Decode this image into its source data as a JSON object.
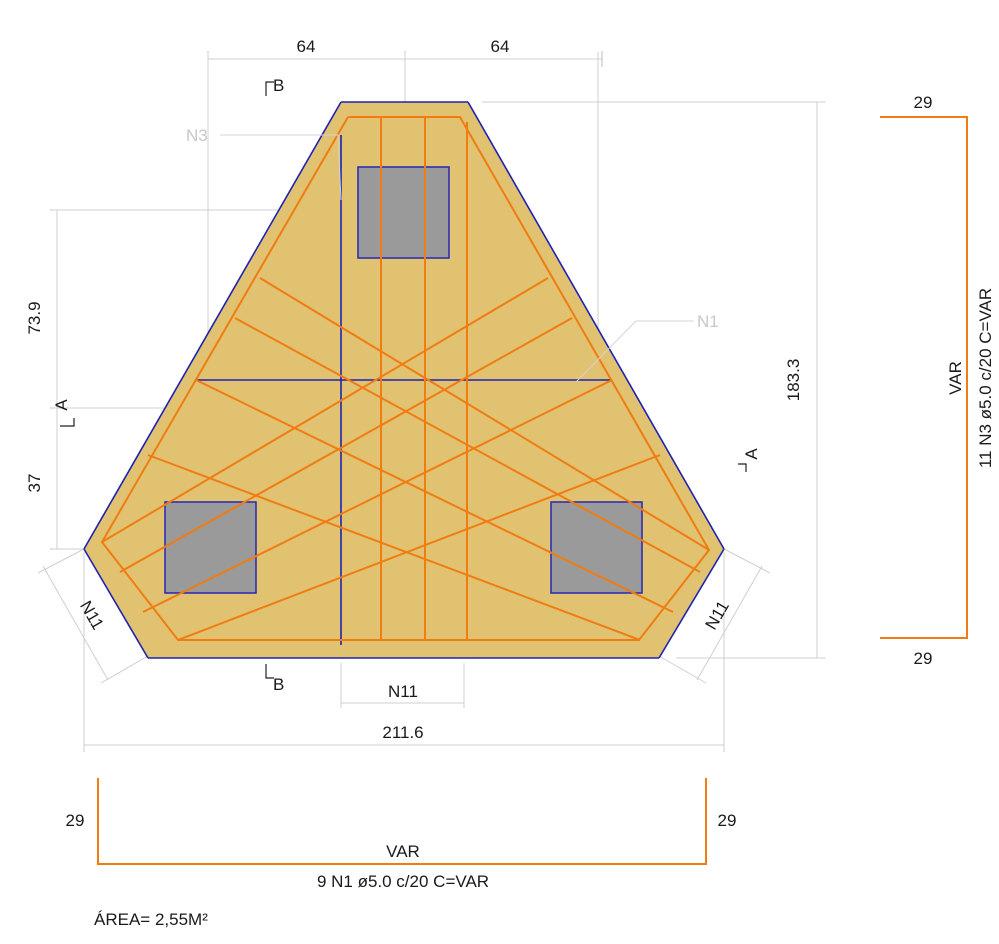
{
  "colors": {
    "concrete_fill": "#e0c271",
    "concrete_outline": "#1f22b0",
    "rebar": "#f07c12",
    "pile_fill": "#9a9a9a",
    "dimension_line": "#cfcfcf"
  },
  "dimensions": {
    "top_left": "64",
    "top_right": "64",
    "left_upper": "73.9",
    "left_lower": "37",
    "height": "183.3",
    "width": "211.6"
  },
  "bar_labels": {
    "n3": "N3",
    "n1": "N1",
    "n11_left": "N11",
    "n11_right": "N11",
    "n11_bottom": "N11"
  },
  "section_marks": {
    "b_top": "B",
    "b_bottom": "B",
    "a_left": "A",
    "a_right": "A"
  },
  "schedule_n3": {
    "hook_top": "29",
    "hook_bottom": "29",
    "length": "VAR",
    "spec": "11 N3 ø5.0 c/20 C=VAR"
  },
  "schedule_n1": {
    "hook_left": "29",
    "hook_right": "29",
    "length": "VAR",
    "spec": "9 N1 ø5.0 c/20 C=VAR"
  },
  "area_label": "ÁREA= 2,55M²"
}
